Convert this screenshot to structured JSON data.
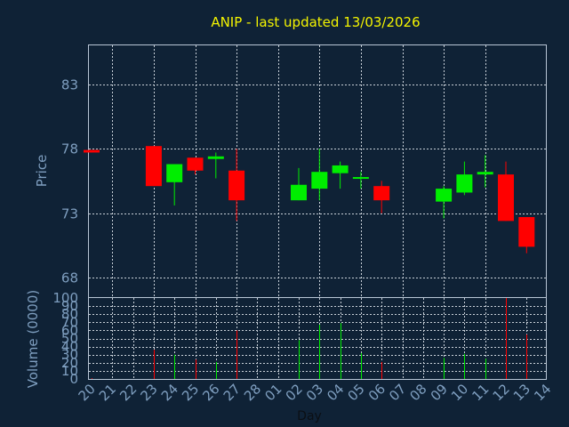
{
  "colors": {
    "background": "#0f2236",
    "plot_border": "#b8c6d6",
    "grid": "#c8d0d8",
    "title": "#f4f400",
    "axis_label": "#7f9fc0",
    "up": "#00ee00",
    "down": "#ff0000"
  },
  "chart_data": [
    {
      "type": "candlestick",
      "title": "ANIP - last updated 13/03/2026",
      "ylabel": "Price",
      "ylim": [
        66.5,
        86
      ],
      "yticks": [
        68,
        73,
        78,
        83
      ],
      "grid": true,
      "categories": [
        "20",
        "21",
        "22",
        "23",
        "24",
        "25",
        "26",
        "27",
        "28",
        "01",
        "02",
        "03",
        "04",
        "05",
        "06",
        "07",
        "08",
        "09",
        "10",
        "11",
        "12",
        "13",
        "14"
      ],
      "candles": [
        {
          "x": "20",
          "open": 77.9,
          "close": 77.7,
          "high": 77.9,
          "low": 77.7
        },
        {
          "x": "23",
          "open": 78.2,
          "close": 75.1,
          "high": 78.2,
          "low": 75.1
        },
        {
          "x": "24",
          "open": 75.4,
          "close": 76.8,
          "high": 76.8,
          "low": 73.6
        },
        {
          "x": "25",
          "open": 77.3,
          "close": 76.3,
          "high": 77.3,
          "low": 76.0
        },
        {
          "x": "26",
          "open": 77.2,
          "close": 77.4,
          "high": 77.7,
          "low": 75.7
        },
        {
          "x": "27",
          "open": 76.3,
          "close": 74.0,
          "high": 78.0,
          "low": 72.4
        },
        {
          "x": "02",
          "open": 74.0,
          "close": 75.2,
          "high": 76.5,
          "low": 74.0
        },
        {
          "x": "03",
          "open": 74.9,
          "close": 76.2,
          "high": 78.0,
          "low": 74.0
        },
        {
          "x": "04",
          "open": 76.1,
          "close": 76.7,
          "high": 77.0,
          "low": 74.9
        },
        {
          "x": "05",
          "open": 75.7,
          "close": 75.8,
          "high": 76.2,
          "low": 74.9
        },
        {
          "x": "06",
          "open": 75.1,
          "close": 74.0,
          "high": 75.5,
          "low": 73.0
        },
        {
          "x": "09",
          "open": 73.9,
          "close": 74.9,
          "high": 75.1,
          "low": 72.6
        },
        {
          "x": "10",
          "open": 74.6,
          "close": 76.0,
          "high": 77.0,
          "low": 74.4
        },
        {
          "x": "11",
          "open": 76.0,
          "close": 76.2,
          "high": 77.5,
          "low": 75.0
        },
        {
          "x": "12",
          "open": 76.0,
          "close": 72.4,
          "high": 77.0,
          "low": 72.4
        },
        {
          "x": "13",
          "open": 72.7,
          "close": 70.4,
          "high": 72.7,
          "low": 69.9
        }
      ]
    },
    {
      "type": "bar",
      "ylabel": "Volume (0000)",
      "xlabel": "Day",
      "ylim": [
        0,
        100
      ],
      "yticks": [
        0,
        10,
        20,
        30,
        40,
        50,
        60,
        70,
        80,
        90,
        100
      ],
      "grid": true,
      "categories": [
        "20",
        "21",
        "22",
        "23",
        "24",
        "25",
        "26",
        "27",
        "28",
        "01",
        "02",
        "03",
        "04",
        "05",
        "06",
        "07",
        "08",
        "09",
        "10",
        "11",
        "12",
        "13",
        "14"
      ],
      "bars": [
        {
          "x": "20",
          "value": 1,
          "direction": "down"
        },
        {
          "x": "23",
          "value": 36,
          "direction": "down"
        },
        {
          "x": "24",
          "value": 30,
          "direction": "up"
        },
        {
          "x": "25",
          "value": 24,
          "direction": "down"
        },
        {
          "x": "26",
          "value": 21,
          "direction": "up"
        },
        {
          "x": "27",
          "value": 60,
          "direction": "down"
        },
        {
          "x": "02",
          "value": 48,
          "direction": "up"
        },
        {
          "x": "03",
          "value": 67,
          "direction": "up"
        },
        {
          "x": "04",
          "value": 69,
          "direction": "up"
        },
        {
          "x": "05",
          "value": 32,
          "direction": "up"
        },
        {
          "x": "06",
          "value": 21,
          "direction": "down"
        },
        {
          "x": "09",
          "value": 26,
          "direction": "up"
        },
        {
          "x": "10",
          "value": 31,
          "direction": "up"
        },
        {
          "x": "11",
          "value": 25,
          "direction": "up"
        },
        {
          "x": "12",
          "value": 100,
          "direction": "down"
        },
        {
          "x": "13",
          "value": 55,
          "direction": "down"
        }
      ]
    }
  ]
}
